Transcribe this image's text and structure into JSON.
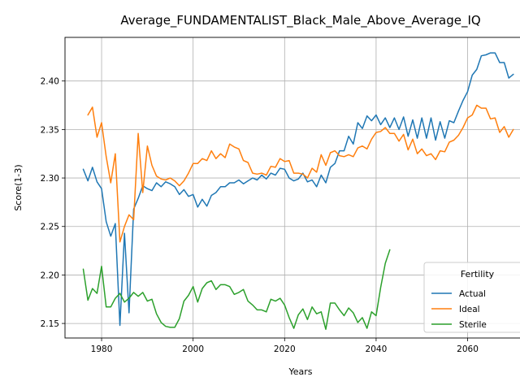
{
  "chart_data": {
    "type": "line",
    "title": "Average_FUNDAMENTALIST_Black_Male_Above_Average_IQ",
    "xlabel": "Years",
    "ylabel": "Score(1-3)",
    "xlim": [
      1972,
      2075
    ],
    "ylim": [
      2.135,
      2.445
    ],
    "x_ticks": [
      1980,
      2000,
      2020,
      2040,
      2060
    ],
    "y_ticks": [
      2.15,
      2.2,
      2.25,
      2.3,
      2.35,
      2.4
    ],
    "y_tick_labels": [
      "2.15",
      "2.20",
      "2.25",
      "2.30",
      "2.35",
      "2.40"
    ],
    "grid": true,
    "legend": {
      "title": "Fertility",
      "position": "lower-right"
    },
    "series": [
      {
        "name": "Actual",
        "color": "#1f77b4",
        "x": [
          1976,
          1977,
          1978,
          1979,
          1980,
          1981,
          1982,
          1983,
          1984,
          1985,
          1986,
          1987,
          1988,
          1989,
          1990,
          1991,
          1992,
          1993,
          1994,
          1995,
          1996,
          1997,
          1998,
          1999,
          2000,
          2001,
          2002,
          2003,
          2004,
          2005,
          2006,
          2007,
          2008,
          2009,
          2010,
          2011,
          2012,
          2013,
          2014,
          2015,
          2016,
          2017,
          2018,
          2019,
          2020,
          2021,
          2022,
          2023,
          2024,
          2025,
          2026,
          2027,
          2028,
          2029,
          2030,
          2031,
          2032,
          2033,
          2034,
          2035,
          2036,
          2037,
          2038,
          2039,
          2040,
          2041,
          2042,
          2043,
          2044,
          2045,
          2046,
          2047,
          2048,
          2049,
          2050,
          2051,
          2052,
          2053,
          2054,
          2055,
          2056,
          2057,
          2058,
          2059,
          2060,
          2061,
          2062,
          2063,
          2064,
          2065,
          2066,
          2067,
          2068,
          2069,
          2070
        ],
        "values": [
          2.309,
          2.297,
          2.311,
          2.296,
          2.289,
          2.255,
          2.24,
          2.253,
          2.148,
          2.243,
          2.161,
          2.268,
          2.279,
          2.292,
          2.289,
          2.287,
          2.295,
          2.291,
          2.296,
          2.294,
          2.291,
          2.283,
          2.288,
          2.281,
          2.283,
          2.27,
          2.278,
          2.271,
          2.282,
          2.285,
          2.291,
          2.291,
          2.295,
          2.295,
          2.298,
          2.294,
          2.297,
          2.3,
          2.298,
          2.303,
          2.299,
          2.305,
          2.303,
          2.31,
          2.309,
          2.3,
          2.297,
          2.299,
          2.305,
          2.296,
          2.298,
          2.291,
          2.303,
          2.295,
          2.311,
          2.315,
          2.328,
          2.328,
          2.343,
          2.335,
          2.357,
          2.351,
          2.364,
          2.359,
          2.365,
          2.355,
          2.362,
          2.352,
          2.362,
          2.35,
          2.363,
          2.343,
          2.36,
          2.341,
          2.362,
          2.341,
          2.362,
          2.339,
          2.358,
          2.341,
          2.359,
          2.357,
          2.369,
          2.38,
          2.389,
          2.406,
          2.412,
          2.426,
          2.427,
          2.429,
          2.429,
          2.419,
          2.419,
          2.403,
          2.407
        ]
      },
      {
        "name": "Ideal",
        "color": "#ff7f0e",
        "x": [
          1977,
          1978,
          1979,
          1980,
          1981,
          1982,
          1983,
          1984,
          1985,
          1986,
          1987,
          1988,
          1989,
          1990,
          1991,
          1992,
          1993,
          1994,
          1995,
          1996,
          1997,
          1998,
          1999,
          2000,
          2001,
          2002,
          2003,
          2004,
          2005,
          2006,
          2007,
          2008,
          2009,
          2010,
          2011,
          2012,
          2013,
          2014,
          2015,
          2016,
          2017,
          2018,
          2019,
          2020,
          2021,
          2022,
          2023,
          2024,
          2025,
          2026,
          2027,
          2028,
          2029,
          2030,
          2031,
          2032,
          2033,
          2034,
          2035,
          2036,
          2037,
          2038,
          2039,
          2040,
          2041,
          2042,
          2043,
          2044,
          2045,
          2046,
          2047,
          2048,
          2049,
          2050,
          2051,
          2052,
          2053,
          2054,
          2055,
          2056,
          2057,
          2058,
          2059,
          2060,
          2061,
          2062,
          2063,
          2064,
          2065,
          2066,
          2067,
          2068,
          2069,
          2070
        ],
        "values": [
          2.365,
          2.373,
          2.342,
          2.357,
          2.322,
          2.295,
          2.325,
          2.234,
          2.25,
          2.262,
          2.257,
          2.346,
          2.285,
          2.333,
          2.313,
          2.302,
          2.299,
          2.298,
          2.3,
          2.297,
          2.292,
          2.297,
          2.305,
          2.315,
          2.315,
          2.32,
          2.318,
          2.328,
          2.32,
          2.325,
          2.321,
          2.335,
          2.332,
          2.33,
          2.318,
          2.316,
          2.305,
          2.304,
          2.305,
          2.303,
          2.312,
          2.311,
          2.32,
          2.317,
          2.318,
          2.305,
          2.305,
          2.304,
          2.3,
          2.31,
          2.306,
          2.324,
          2.313,
          2.326,
          2.328,
          2.323,
          2.322,
          2.324,
          2.322,
          2.331,
          2.333,
          2.33,
          2.34,
          2.347,
          2.348,
          2.352,
          2.346,
          2.346,
          2.338,
          2.345,
          2.329,
          2.34,
          2.325,
          2.33,
          2.323,
          2.325,
          2.319,
          2.328,
          2.327,
          2.337,
          2.339,
          2.344,
          2.352,
          2.362,
          2.365,
          2.375,
          2.372,
          2.372,
          2.361,
          2.362,
          2.347,
          2.353,
          2.342,
          2.35
        ]
      },
      {
        "name": "Sterile",
        "color": "#2ca02c",
        "x": [
          1976,
          1977,
          1978,
          1979,
          1980,
          1981,
          1982,
          1983,
          1984,
          1985,
          1986,
          1987,
          1988,
          1989,
          1990,
          1991,
          1992,
          1993,
          1994,
          1995,
          1996,
          1997,
          1998,
          1999,
          2000,
          2001,
          2002,
          2003,
          2004,
          2005,
          2006,
          2007,
          2008,
          2009,
          2010,
          2011,
          2012,
          2013,
          2014,
          2015,
          2016,
          2017,
          2018,
          2019,
          2020,
          2021,
          2022,
          2023,
          2024,
          2025,
          2026,
          2027,
          2028,
          2029,
          2030,
          2031,
          2032,
          2033,
          2034,
          2035,
          2036,
          2037,
          2038,
          2039,
          2040,
          2041,
          2042,
          2043
        ],
        "values": [
          2.206,
          2.174,
          2.186,
          2.181,
          2.209,
          2.167,
          2.167,
          2.176,
          2.181,
          2.172,
          2.176,
          2.182,
          2.178,
          2.182,
          2.173,
          2.175,
          2.16,
          2.151,
          2.147,
          2.146,
          2.146,
          2.155,
          2.173,
          2.179,
          2.188,
          2.172,
          2.186,
          2.192,
          2.194,
          2.185,
          2.19,
          2.19,
          2.188,
          2.18,
          2.182,
          2.185,
          2.173,
          2.169,
          2.164,
          2.164,
          2.162,
          2.175,
          2.173,
          2.176,
          2.169,
          2.156,
          2.145,
          2.159,
          2.165,
          2.154,
          2.167,
          2.16,
          2.162,
          2.144,
          2.171,
          2.171,
          2.164,
          2.158,
          2.166,
          2.161,
          2.151,
          2.156,
          2.145,
          2.162,
          2.158,
          2.187,
          2.212,
          2.226
        ]
      }
    ]
  }
}
